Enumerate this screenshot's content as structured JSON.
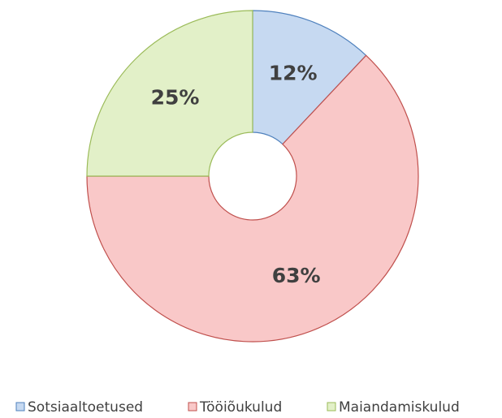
{
  "chart_data": {
    "type": "donut",
    "categories": [
      "Sotsiaaltoetused",
      "Tööiõukulud",
      "Maiandamiskulud"
    ],
    "values": [
      12,
      63,
      25
    ],
    "value_labels": [
      "12%",
      "63%",
      "25%"
    ],
    "colors": [
      "#c6d9f1",
      "#f9c8c8",
      "#e2f0c8"
    ],
    "legend": "bottom"
  }
}
